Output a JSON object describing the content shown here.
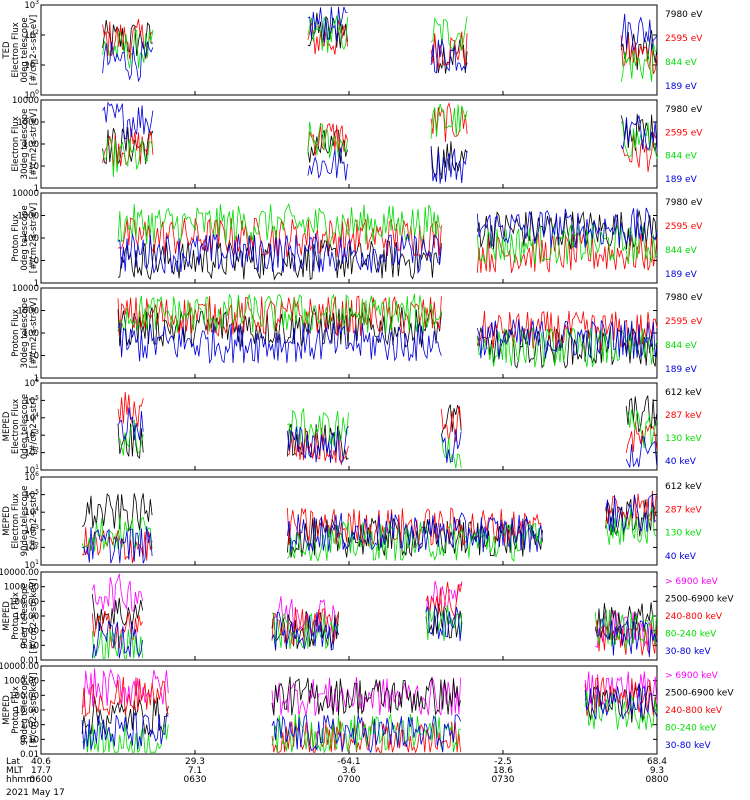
{
  "footer": {
    "lat_label": "Lat",
    "mlt_label": "MLT",
    "time_label": "hhmm",
    "date": "2021 May 17",
    "ticks": [
      {
        "lat": "40.6",
        "mlt": "17.7",
        "time": "0600"
      },
      {
        "lat": "29.3",
        "mlt": "7.1",
        "time": "0630"
      },
      {
        "lat": "-64.1",
        "mlt": "3.6",
        "time": "0700"
      },
      {
        "lat": "-2.5",
        "mlt": "18.6",
        "time": "0730"
      },
      {
        "lat": "68.4",
        "mlt": "9.3",
        "time": "0800"
      }
    ]
  },
  "chart_data": [
    {
      "type": "line",
      "ylabel": [
        "TED",
        "Electron Flux",
        "0deg telescope",
        "[#/cm2-s-str-eV]"
      ],
      "y_scale": "log",
      "ylim": [
        1,
        1000
      ],
      "ytick_labels": [
        "10^0",
        "10^1",
        "10^2",
        "10^3"
      ],
      "x_start": "06:00",
      "x_end": "08:00",
      "series": [
        {
          "name": "7980 eV",
          "color": "#000000"
        },
        {
          "name": "2595 eV",
          "color": "#ff0000"
        },
        {
          "name": "844 eV",
          "color": "#00dd00"
        },
        {
          "name": "189 eV",
          "color": "#0000dd"
        }
      ]
    },
    {
      "type": "line",
      "ylabel": [
        "Electron Flux",
        "30deg telescope",
        "[#/cm2-s-str-eV]"
      ],
      "y_scale": "log",
      "ylim": [
        1,
        10000
      ],
      "ytick_labels": [
        "1",
        "10",
        "100",
        "1000",
        "10000"
      ],
      "series": [
        {
          "name": "7980 eV",
          "color": "#000000"
        },
        {
          "name": "2595 eV",
          "color": "#ff0000"
        },
        {
          "name": "844 eV",
          "color": "#00dd00"
        },
        {
          "name": "189 eV",
          "color": "#0000dd"
        }
      ]
    },
    {
      "type": "line",
      "ylabel": [
        "Proton Flux",
        "0deg telescope",
        "[#/cm2-s-str-eV]"
      ],
      "y_scale": "log",
      "ylim": [
        1,
        10000
      ],
      "ytick_labels": [
        "1",
        "10",
        "100",
        "1000",
        "10000"
      ],
      "series": [
        {
          "name": "7980 eV",
          "color": "#000000"
        },
        {
          "name": "2595 eV",
          "color": "#ff0000"
        },
        {
          "name": "844 eV",
          "color": "#00dd00"
        },
        {
          "name": "189 eV",
          "color": "#0000dd"
        }
      ]
    },
    {
      "type": "line",
      "ylabel": [
        "Proton Flux",
        "30deg telescope",
        "[#/cm2-s-str-eV]"
      ],
      "y_scale": "log",
      "ylim": [
        1,
        10000
      ],
      "ytick_labels": [
        "1",
        "10",
        "100",
        "1000",
        "10000"
      ],
      "series": [
        {
          "name": "7980 eV",
          "color": "#000000"
        },
        {
          "name": "2595 eV",
          "color": "#ff0000"
        },
        {
          "name": "844 eV",
          "color": "#00dd00"
        },
        {
          "name": "189 eV",
          "color": "#0000dd"
        }
      ]
    },
    {
      "type": "line",
      "ylabel": [
        "MEPED",
        "Electron Flux",
        "0deg telescope",
        "[#/cm2-s-str]"
      ],
      "y_scale": "log",
      "ylim": [
        10,
        1000000
      ],
      "ytick_labels": [
        "10^1",
        "10^2",
        "10^3",
        "10^4",
        "10^5",
        "10^6"
      ],
      "series": [
        {
          "name": "612 keV",
          "color": "#000000"
        },
        {
          "name": "287 keV",
          "color": "#ff0000"
        },
        {
          "name": "130 keV",
          "color": "#00dd00"
        },
        {
          "name": "40 keV",
          "color": "#0000dd"
        }
      ]
    },
    {
      "type": "line",
      "ylabel": [
        "MEPED",
        "Electron Flux",
        "90deg telescope",
        "[#/cm2-s-str]"
      ],
      "y_scale": "log",
      "ylim": [
        10,
        1000000
      ],
      "ytick_labels": [
        "10^1",
        "10^2",
        "10^3",
        "10^4",
        "10^5",
        "10^6"
      ],
      "series": [
        {
          "name": "612 keV",
          "color": "#000000"
        },
        {
          "name": "287 keV",
          "color": "#ff0000"
        },
        {
          "name": "130 keV",
          "color": "#00dd00"
        },
        {
          "name": "40 keV",
          "color": "#0000dd"
        }
      ]
    },
    {
      "type": "line",
      "ylabel": [
        "MEPED",
        "Proton Flux",
        "0deg telescope",
        "[#/cm2-s-str-keV]"
      ],
      "y_scale": "log",
      "ylim": [
        0.01,
        10000
      ],
      "ytick_labels": [
        "0.01",
        "0.10",
        "1.00",
        "10.00",
        "100.00",
        "1000.00",
        "10000.00"
      ],
      "series": [
        {
          "name": "> 6900 keV",
          "color": "#ff00ff"
        },
        {
          "name": "2500-6900 keV",
          "color": "#000000"
        },
        {
          "name": "240-800 keV",
          "color": "#ff0000"
        },
        {
          "name": "80-240 keV",
          "color": "#00dd00"
        },
        {
          "name": "30-80 keV",
          "color": "#0000dd"
        }
      ]
    },
    {
      "type": "line",
      "ylabel": [
        "MEPED",
        "Proton Flux",
        "90deg telescope",
        "[#/cm2-s-str-keV]"
      ],
      "y_scale": "log",
      "ylim": [
        0.01,
        10000
      ],
      "ytick_labels": [
        "0.01",
        "0.10",
        "1.00",
        "10.00",
        "100.00",
        "1000.00",
        "10000.00"
      ],
      "series": [
        {
          "name": "> 6900 keV",
          "color": "#ff00ff"
        },
        {
          "name": "2500-6900 keV",
          "color": "#000000"
        },
        {
          "name": "240-800 keV",
          "color": "#ff0000"
        },
        {
          "name": "80-240 keV",
          "color": "#00dd00"
        },
        {
          "name": "30-80 keV",
          "color": "#0000dd"
        }
      ]
    }
  ]
}
